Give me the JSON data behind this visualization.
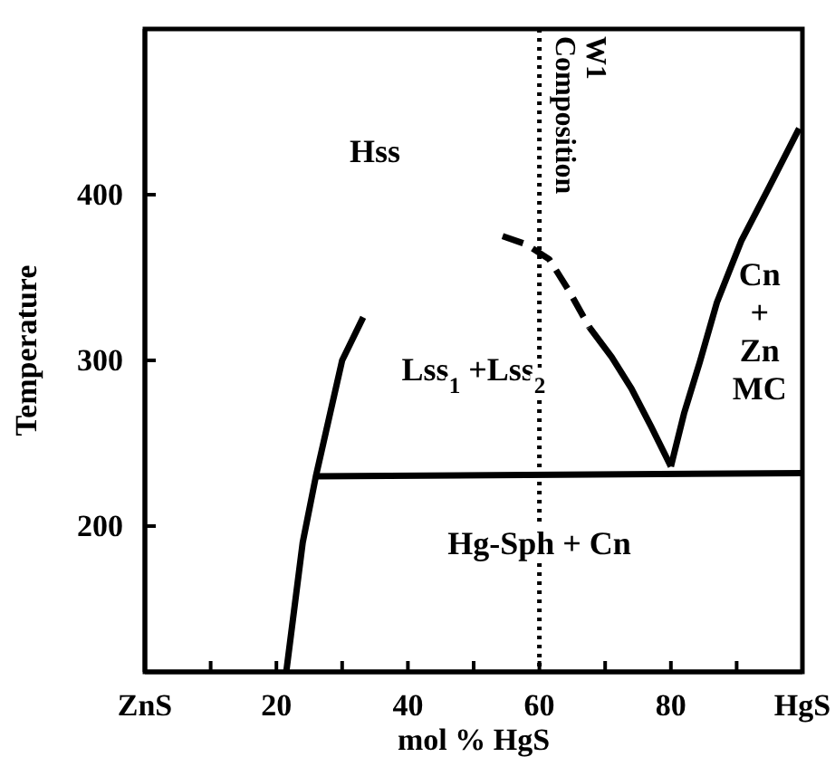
{
  "chart_data": {
    "type": "line",
    "xlabel": "mol % HgS",
    "ylabel": "Temperature",
    "xlim": [
      0,
      100
    ],
    "ylim": [
      112,
      500
    ],
    "xticks": [
      {
        "value": 0,
        "label": "ZnS"
      },
      {
        "value": 10,
        "label": null
      },
      20,
      {
        "value": 30,
        "label": null
      },
      40,
      {
        "value": 50,
        "label": null
      },
      60,
      {
        "value": 70,
        "label": null
      },
      80,
      {
        "value": 90,
        "label": null
      },
      {
        "value": 100,
        "label": "HgS"
      }
    ],
    "yticks": [
      200,
      300,
      400
    ],
    "grid": false,
    "series": [
      {
        "color": "#000000",
        "line_style": "solid",
        "x": [
          21.5,
          24,
          26,
          28,
          30,
          33.2
        ],
        "values": [
          112,
          190,
          230,
          265,
          300,
          326
        ]
      },
      {
        "color": "#000000",
        "line_style": "solid",
        "x": [
          26,
          100
        ],
        "values": [
          230,
          232
        ]
      },
      {
        "color": "#000000",
        "line_style": "dashed",
        "x": [
          54.4,
          58,
          61.5,
          64.5,
          67.6
        ],
        "values": [
          375,
          370,
          361,
          342,
          320
        ]
      },
      {
        "color": "#000000",
        "line_style": "solid",
        "x": [
          67.6,
          71,
          74,
          77,
          80
        ],
        "values": [
          320,
          302,
          283,
          260,
          236
        ]
      },
      {
        "color": "#000000",
        "line_style": "solid",
        "x": [
          80,
          82,
          84.4,
          87,
          90.7,
          95,
          99.5
        ],
        "values": [
          236,
          268,
          299,
          335,
          372,
          405,
          440
        ]
      }
    ],
    "ref_lines": [
      {
        "axis": "x",
        "value": 60,
        "label": "W1 Composition",
        "line_style": "dotted",
        "color": "#000000"
      }
    ],
    "annotations": [
      "Hss",
      "Lss$_{1}$ +Lss$_{2}$",
      "Hg-Sph + Cn",
      "Cn + Zn MC"
    ]
  }
}
